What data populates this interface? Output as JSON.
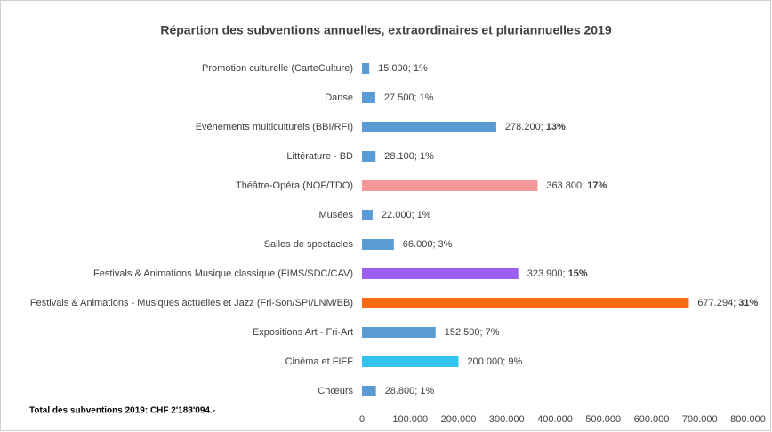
{
  "chart_data": {
    "type": "hbar",
    "title": "Répartion des subventions annuelles, extraordinaires et pluriannuelles 2019",
    "note": "Total des subventions 2019: CHF 2'183'094.-",
    "categories": [
      "Promotion culturelle (CarteCulture)",
      "Danse",
      "Evénements multiculturels (BBI/RFI)",
      "Littérature - BD",
      "Théâtre-Opéra (NOF/TDO)",
      "Musées",
      "Salles de spectacles",
      "Festivals & Animations Musique classique (FIMS/SDC/CAV)",
      "Festivals & Animations - Musiques actuelles et Jazz (Fri-Son/SPI/LNM/BB)",
      "Expositions Art - Fri-Art",
      "Cinéma et FIFF",
      "Chœurs"
    ],
    "values": [
      15000,
      27500,
      278200,
      28100,
      363800,
      22000,
      66000,
      323900,
      677294,
      152500,
      200000,
      28800
    ],
    "value_labels": [
      "15.000; 1%",
      "27.500; 1%",
      "278.200; 13%",
      "28.100; 1%",
      "363.800; 17%",
      "22.000; 1%",
      "66.000; 3%",
      "323.900; 15%",
      "677.294; 31%",
      "152.500; 7%",
      "200.000; 9%",
      "28.800; 1%"
    ],
    "bold_percent": [
      false,
      false,
      true,
      false,
      true,
      false,
      false,
      true,
      true,
      false,
      false,
      false
    ],
    "colors": [
      "#5b9bd5",
      "#5b9bd5",
      "#5b9bd5",
      "#5b9bd5",
      "#f4979a",
      "#5b9bd5",
      "#5b9bd5",
      "#9d5ff0",
      "#ff6a13",
      "#5b9bd5",
      "#33c5ef",
      "#5b9bd5"
    ],
    "xlim": [
      0,
      800000
    ],
    "xticks": [
      0,
      {
        "value": 100000,
        "label": "100.000"
      },
      {
        "value": 200000,
        "label": "200.000"
      },
      {
        "value": 300000,
        "label": "300.000"
      },
      {
        "value": 400000,
        "label": "400.000"
      },
      {
        "value": 500000,
        "label": "500.000"
      },
      {
        "value": 600000,
        "label": "600.000"
      },
      {
        "value": 700000,
        "label": "700.000"
      },
      {
        "value": 800000,
        "label": "800.000"
      }
    ]
  }
}
